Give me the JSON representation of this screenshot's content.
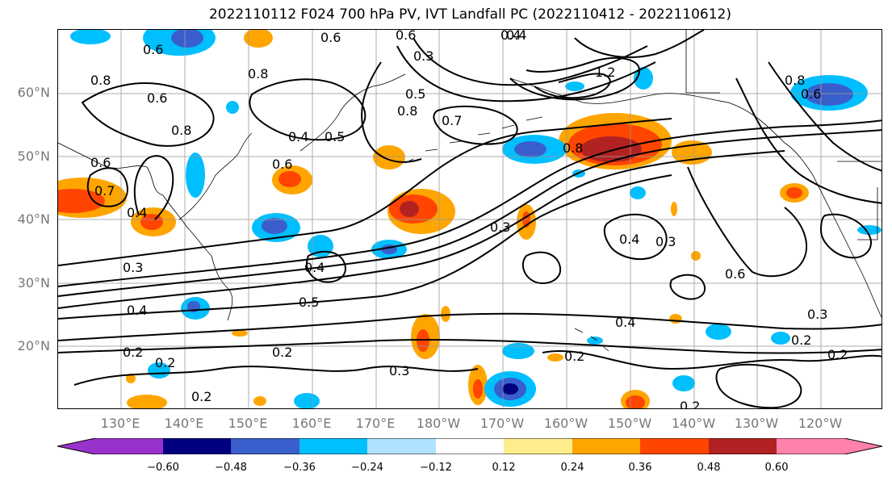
{
  "title": "2022110112 F024 700 hPa PV, IVT Landfall PC (2022110412 - 2022110612)",
  "map": {
    "lat_labels": [
      "60°N",
      "50°N",
      "40°N",
      "30°N",
      "20°N"
    ],
    "lon_labels": [
      "130°E",
      "140°E",
      "150°E",
      "160°E",
      "170°E",
      "180°W",
      "170°W",
      "160°W",
      "150°W",
      "140°W",
      "130°W",
      "120°W"
    ],
    "contour_labels": [
      "0.8",
      "0.6",
      "0.6",
      "0.4",
      "0.4",
      "0.6",
      "0.3",
      "0.8",
      "0.5",
      "0.8",
      "0.7",
      "1.2",
      "0.8",
      "0.6",
      "0.6",
      "0.8",
      "0.6",
      "0.4",
      "0.5",
      "0.7",
      "0.4",
      "0.8",
      "0.6",
      "0.3",
      "0.4",
      "0.3",
      "0.4",
      "0.5",
      "0.4",
      "0.6",
      "0.3",
      "0.2",
      "0.2",
      "0.2",
      "0.2",
      "0.2",
      "0.3",
      "0.2",
      "0.2",
      "0.3",
      "0.4",
      "0.2"
    ]
  },
  "colorbar": {
    "ticks": [
      "−0.60",
      "−0.48",
      "−0.36",
      "−0.24",
      "−0.12",
      "0.12",
      "0.24",
      "0.36",
      "0.48",
      "0.60"
    ],
    "colors": [
      "#9932cc",
      "#000080",
      "#3a5fcd",
      "#00bfff",
      "#b0e2ff",
      "#ffffff",
      "#ffec8b",
      "#ffa500",
      "#ff4500",
      "#b22222",
      "#ff82ab"
    ]
  },
  "shading": {
    "negative_colors": [
      "#b0e2ff",
      "#00bfff",
      "#3a5fcd",
      "#000080"
    ],
    "positive_colors": [
      "#ffec8b",
      "#ffa500",
      "#ff4500",
      "#b22222"
    ]
  }
}
